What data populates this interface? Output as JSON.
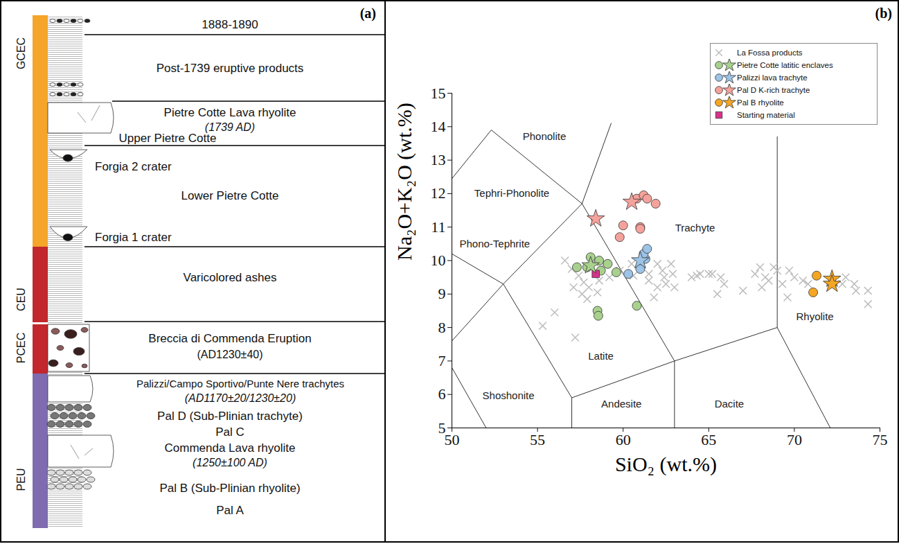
{
  "stratigraphy": {
    "panel_label": "(a)",
    "units": [
      {
        "name": "GCEC",
        "color": "#f5a52a"
      },
      {
        "name": "CEU",
        "color": "#c1272d"
      },
      {
        "name": "PCEC",
        "color": "#c1272d"
      },
      {
        "name": "PEU",
        "color": "#7e6bb0"
      }
    ],
    "layers": [
      {
        "text": "1888-1890"
      },
      {
        "text": "Post-1739 eruptive products"
      },
      {
        "text": "Pietre Cotte Lava rhyolite",
        "date": "(1739 AD)"
      },
      {
        "text": "Upper Pietre Cotte"
      },
      {
        "text": "Forgia 2 crater"
      },
      {
        "text": "Lower Pietre Cotte"
      },
      {
        "text": "Forgia 1 crater"
      },
      {
        "text": "Varicolored ashes"
      },
      {
        "text": "Breccia di Commenda Eruption",
        "note": "(AD1230±40)"
      },
      {
        "text": "Palizzi/Campo Sportivo/Punte Nere trachytes",
        "date": "(AD1170±20/1230±20)"
      },
      {
        "text": "Pal D (Sub-Plinian trachyte)"
      },
      {
        "text": "Pal C"
      },
      {
        "text": "Commenda Lava rhyolite",
        "date": "(1250±100 AD)"
      },
      {
        "text": "Pal B (Sub-Plinian rhyolite)"
      },
      {
        "text": "Pal A"
      }
    ]
  },
  "chart_data": {
    "type": "scatter",
    "panel_label": "(b)",
    "x_label": "SiO₂ (wt.%)",
    "y_label": "Na₂O+K₂O (wt.%)",
    "xlim": [
      50,
      75
    ],
    "ylim": [
      5,
      15
    ],
    "xticks": [
      50,
      55,
      60,
      65,
      70,
      75
    ],
    "yticks": [
      5,
      6,
      7,
      8,
      9,
      10,
      11,
      12,
      13,
      14,
      15
    ],
    "legend": "top-right",
    "boundaries": [
      {
        "x": [
          50,
          52.3,
          57.6,
          63,
          69,
          69
        ],
        "y": [
          12.45,
          13.9,
          11.7,
          7,
          8,
          13.7
        ]
      },
      {
        "x": [
          57.6,
          59.3
        ],
        "y": [
          11.7,
          14.1
        ]
      },
      {
        "x": [
          50,
          53,
          57.6
        ],
        "y": [
          10.2,
          9.3,
          11.7
        ]
      },
      {
        "x": [
          50,
          53,
          57,
          63
        ],
        "y": [
          7.6,
          9.3,
          5.9,
          7
        ]
      },
      {
        "x": [
          57,
          57
        ],
        "y": [
          5.9,
          5
        ]
      },
      {
        "x": [
          63,
          63
        ],
        "y": [
          7,
          5
        ]
      },
      {
        "x": [
          69,
          72.1
        ],
        "y": [
          8,
          5
        ]
      },
      {
        "x": [
          50,
          52
        ],
        "y": [
          6.8,
          5
        ]
      }
    ],
    "fields": [
      {
        "name": "Phonolite",
        "x": 55.4,
        "y": 13.7
      },
      {
        "name": "Tephri-Phonolite",
        "x": 53.5,
        "y": 12.0
      },
      {
        "name": "Phono-Tephrite",
        "x": 52.5,
        "y": 10.5
      },
      {
        "name": "Trachyte",
        "x": 64.2,
        "y": 10.96
      },
      {
        "name": "Latite",
        "x": 58.7,
        "y": 7.13
      },
      {
        "name": "Shoshonite",
        "x": 53.3,
        "y": 5.95
      },
      {
        "name": "Andesite",
        "x": 59.9,
        "y": 5.72
      },
      {
        "name": "Dacite",
        "x": 66.2,
        "y": 5.72
      },
      {
        "name": "Rhyolite",
        "x": 71.2,
        "y": 8.31
      }
    ],
    "series": [
      {
        "name": "La Fossa products",
        "color": "#bdbdbd",
        "marker": "x",
        "points": [
          [
            55.3,
            8.05
          ],
          [
            56.0,
            8.45
          ],
          [
            57.2,
            7.7
          ],
          [
            56.6,
            10.0
          ],
          [
            57.0,
            9.75
          ],
          [
            57.4,
            9.55
          ],
          [
            57.7,
            9.35
          ],
          [
            57.1,
            9.2
          ],
          [
            57.6,
            9.0
          ],
          [
            58.0,
            9.2
          ],
          [
            57.9,
            8.85
          ],
          [
            58.3,
            9.95
          ],
          [
            58.6,
            9.4
          ],
          [
            58.9,
            9.9
          ],
          [
            59.2,
            9.5
          ],
          [
            58.5,
            9.05
          ],
          [
            59.8,
            9.7
          ],
          [
            60.6,
            9.55
          ],
          [
            60.5,
            9.9
          ],
          [
            61.0,
            9.8
          ],
          [
            61.5,
            9.6
          ],
          [
            62.0,
            9.9
          ],
          [
            62.4,
            9.5
          ],
          [
            62.8,
            9.9
          ],
          [
            62.3,
            9.7
          ],
          [
            61.8,
            8.9
          ],
          [
            62.0,
            9.2
          ],
          [
            61.5,
            9.4
          ],
          [
            62.9,
            9.6
          ],
          [
            62.5,
            9.3
          ],
          [
            63.0,
            9.2
          ],
          [
            64.0,
            9.5
          ],
          [
            64.5,
            9.6
          ],
          [
            65.0,
            9.6
          ],
          [
            65.7,
            9.5
          ],
          [
            65.9,
            9.3
          ],
          [
            64.3,
            9.55
          ],
          [
            65.2,
            9.6
          ],
          [
            65.5,
            9.0
          ],
          [
            67.0,
            9.1
          ],
          [
            67.7,
            9.6
          ],
          [
            68.0,
            9.8
          ],
          [
            68.3,
            9.5
          ],
          [
            68.5,
            9.4
          ],
          [
            68.8,
            9.8
          ],
          [
            69.0,
            9.7
          ],
          [
            69.3,
            9.3
          ],
          [
            69.6,
            8.9
          ],
          [
            69.7,
            9.7
          ],
          [
            70.0,
            9.5
          ],
          [
            70.5,
            9.4
          ],
          [
            70.8,
            9.3
          ],
          [
            68.1,
            9.2
          ],
          [
            72.8,
            9.3
          ],
          [
            73.0,
            9.5
          ],
          [
            73.5,
            9.3
          ],
          [
            73.6,
            9.1
          ],
          [
            74.3,
            9.1
          ],
          [
            74.3,
            8.7
          ]
        ]
      },
      {
        "name": "Pietre Cotte latitic enclaves",
        "color": "#a9d18e",
        "marker": "circle",
        "points": [
          [
            57.3,
            9.8
          ],
          [
            57.9,
            9.8
          ],
          [
            58.1,
            10.1
          ],
          [
            58.6,
            10.0
          ],
          [
            59.1,
            9.9
          ],
          [
            58.7,
            9.7
          ],
          [
            59.6,
            9.65
          ],
          [
            58.5,
            8.5
          ],
          [
            58.55,
            8.35
          ],
          [
            60.8,
            8.65
          ]
        ],
        "star_points": [
          [
            58.1,
            9.85
          ]
        ]
      },
      {
        "name": "Palizzi lava trachyte",
        "color": "#9dc3e6",
        "marker": "circle",
        "points": [
          [
            60.3,
            9.6
          ],
          [
            61.0,
            9.75
          ],
          [
            61.3,
            10.05
          ],
          [
            61.2,
            10.2
          ],
          [
            61.4,
            10.35
          ]
        ],
        "star_points": [
          [
            61.0,
            10.0
          ]
        ]
      },
      {
        "name": "Pal D K-rich trachyte",
        "color": "#f4a29b",
        "marker": "circle",
        "points": [
          [
            59.8,
            10.7
          ],
          [
            60.0,
            11.05
          ],
          [
            61.0,
            11.0
          ],
          [
            61.0,
            10.95
          ],
          [
            60.8,
            11.85
          ],
          [
            61.2,
            11.95
          ],
          [
            61.4,
            11.85
          ],
          [
            61.9,
            11.7
          ]
        ],
        "star_points": [
          [
            58.4,
            11.25
          ],
          [
            60.5,
            11.75
          ]
        ]
      },
      {
        "name": "Pal B rhyolite",
        "color": "#f5a623",
        "marker": "circle",
        "points": [
          [
            71.1,
            9.05
          ],
          [
            71.3,
            9.55
          ]
        ],
        "star_points": [
          [
            72.2,
            9.45
          ],
          [
            72.2,
            9.3
          ]
        ]
      },
      {
        "name": "Starting material",
        "color": "#d6338a",
        "marker": "square",
        "points": [
          [
            58.4,
            9.6
          ]
        ]
      }
    ]
  }
}
